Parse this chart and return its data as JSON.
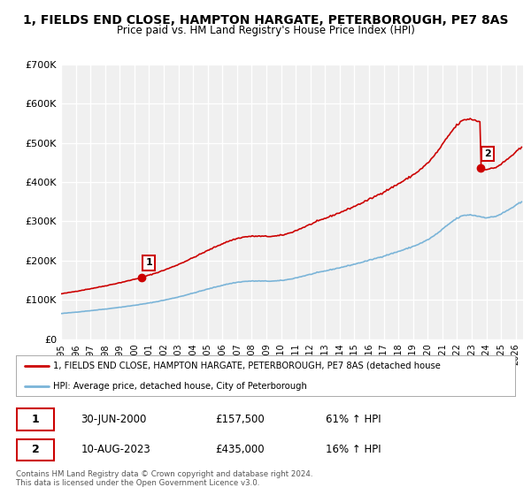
{
  "title": "1, FIELDS END CLOSE, HAMPTON HARGATE, PETERBOROUGH, PE7 8AS",
  "subtitle": "Price paid vs. HM Land Registry's House Price Index (HPI)",
  "ylim": [
    0,
    700000
  ],
  "yticks": [
    0,
    100000,
    200000,
    300000,
    400000,
    500000,
    600000,
    700000
  ],
  "ytick_labels": [
    "£0",
    "£100K",
    "£200K",
    "£300K",
    "£400K",
    "£500K",
    "£600K",
    "£700K"
  ],
  "bg_color": "#f0f0f0",
  "grid_color": "#ffffff",
  "line1_color": "#cc0000",
  "line2_color": "#7ab4d8",
  "sale1_date": "30-JUN-2000",
  "sale1_price": 157500,
  "sale2_date": "10-AUG-2023",
  "sale2_price": 435000,
  "sale1_hpi_pct": "61% ↑ HPI",
  "sale2_hpi_pct": "16% ↑ HPI",
  "legend_line1": "1, FIELDS END CLOSE, HAMPTON HARGATE, PETERBOROUGH, PE7 8AS (detached house",
  "legend_line2": "HPI: Average price, detached house, City of Peterborough",
  "footnote": "Contains HM Land Registry data © Crown copyright and database right 2024.\nThis data is licensed under the Open Government Licence v3.0.",
  "sale1_x": 2000.5,
  "sale2_x": 2023.6,
  "xmin": 1995.0,
  "xmax": 2026.5
}
